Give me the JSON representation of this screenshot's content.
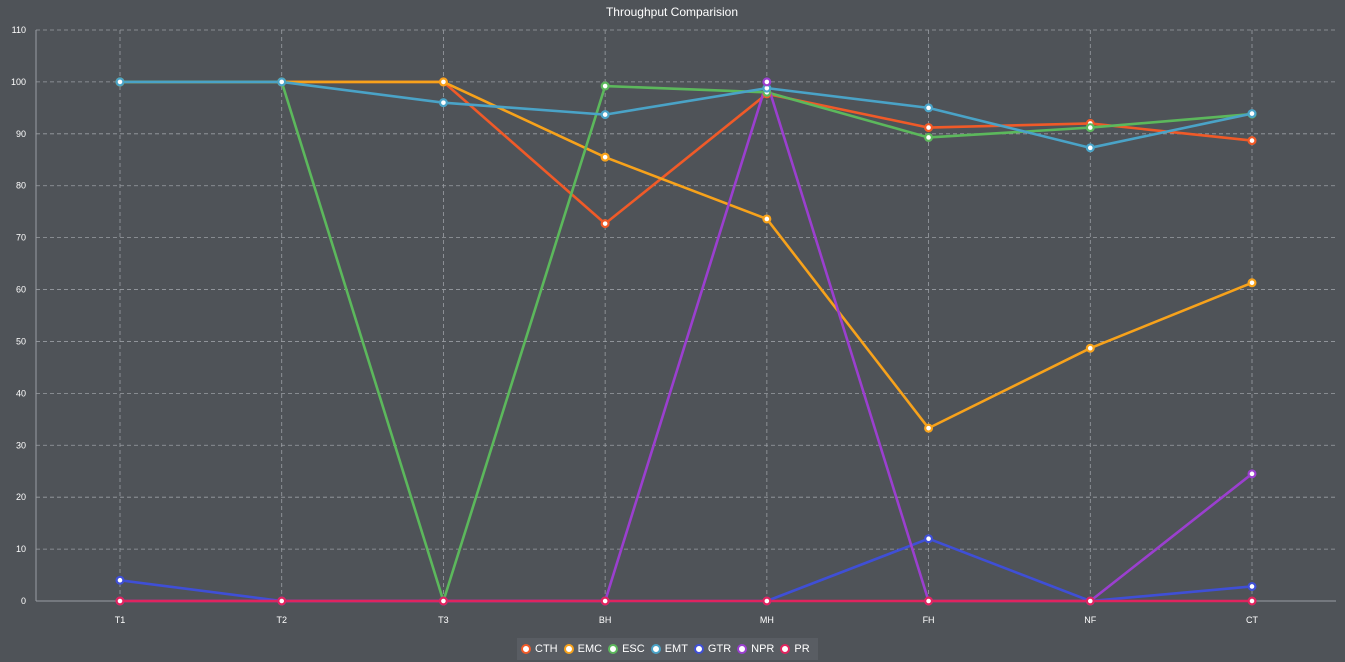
{
  "chart_data": {
    "type": "line",
    "title": "Throughput Comparision",
    "xlabel": "",
    "ylabel": "",
    "categories": [
      "T1",
      "T2",
      "T3",
      "BH",
      "MH",
      "FH",
      "NF",
      "CT"
    ],
    "ylim": [
      0,
      110
    ],
    "yticks": [
      0,
      10,
      20,
      30,
      40,
      50,
      60,
      70,
      80,
      90,
      100,
      110
    ],
    "grid": true,
    "legend_position": "bottom",
    "series": [
      {
        "name": "CTH",
        "color": "#f05a28",
        "values": [
          100,
          100,
          100,
          72.7,
          97.7,
          91.2,
          92,
          88.7
        ]
      },
      {
        "name": "EMC",
        "color": "#f7a21b",
        "values": [
          100,
          100,
          100,
          85.5,
          73.6,
          33.3,
          48.7,
          61.3
        ]
      },
      {
        "name": "ESC",
        "color": "#5cb85c",
        "values": [
          100,
          100,
          0,
          99.2,
          98,
          89.3,
          91.2,
          93.8
        ]
      },
      {
        "name": "EMT",
        "color": "#4aa3c7",
        "values": [
          100,
          100,
          96,
          93.7,
          98.8,
          95,
          87.3,
          93.9
        ]
      },
      {
        "name": "GTR",
        "color": "#3f4fd6",
        "values": [
          4,
          0,
          0,
          0,
          0,
          12,
          0,
          2.8
        ]
      },
      {
        "name": "NPR",
        "color": "#9b3fcf",
        "values": [
          0,
          0,
          0,
          0,
          100,
          0,
          0,
          24.5
        ]
      },
      {
        "name": "PR",
        "color": "#e0245e",
        "values": [
          0,
          0,
          0,
          0,
          0,
          0,
          0,
          0
        ]
      }
    ]
  }
}
